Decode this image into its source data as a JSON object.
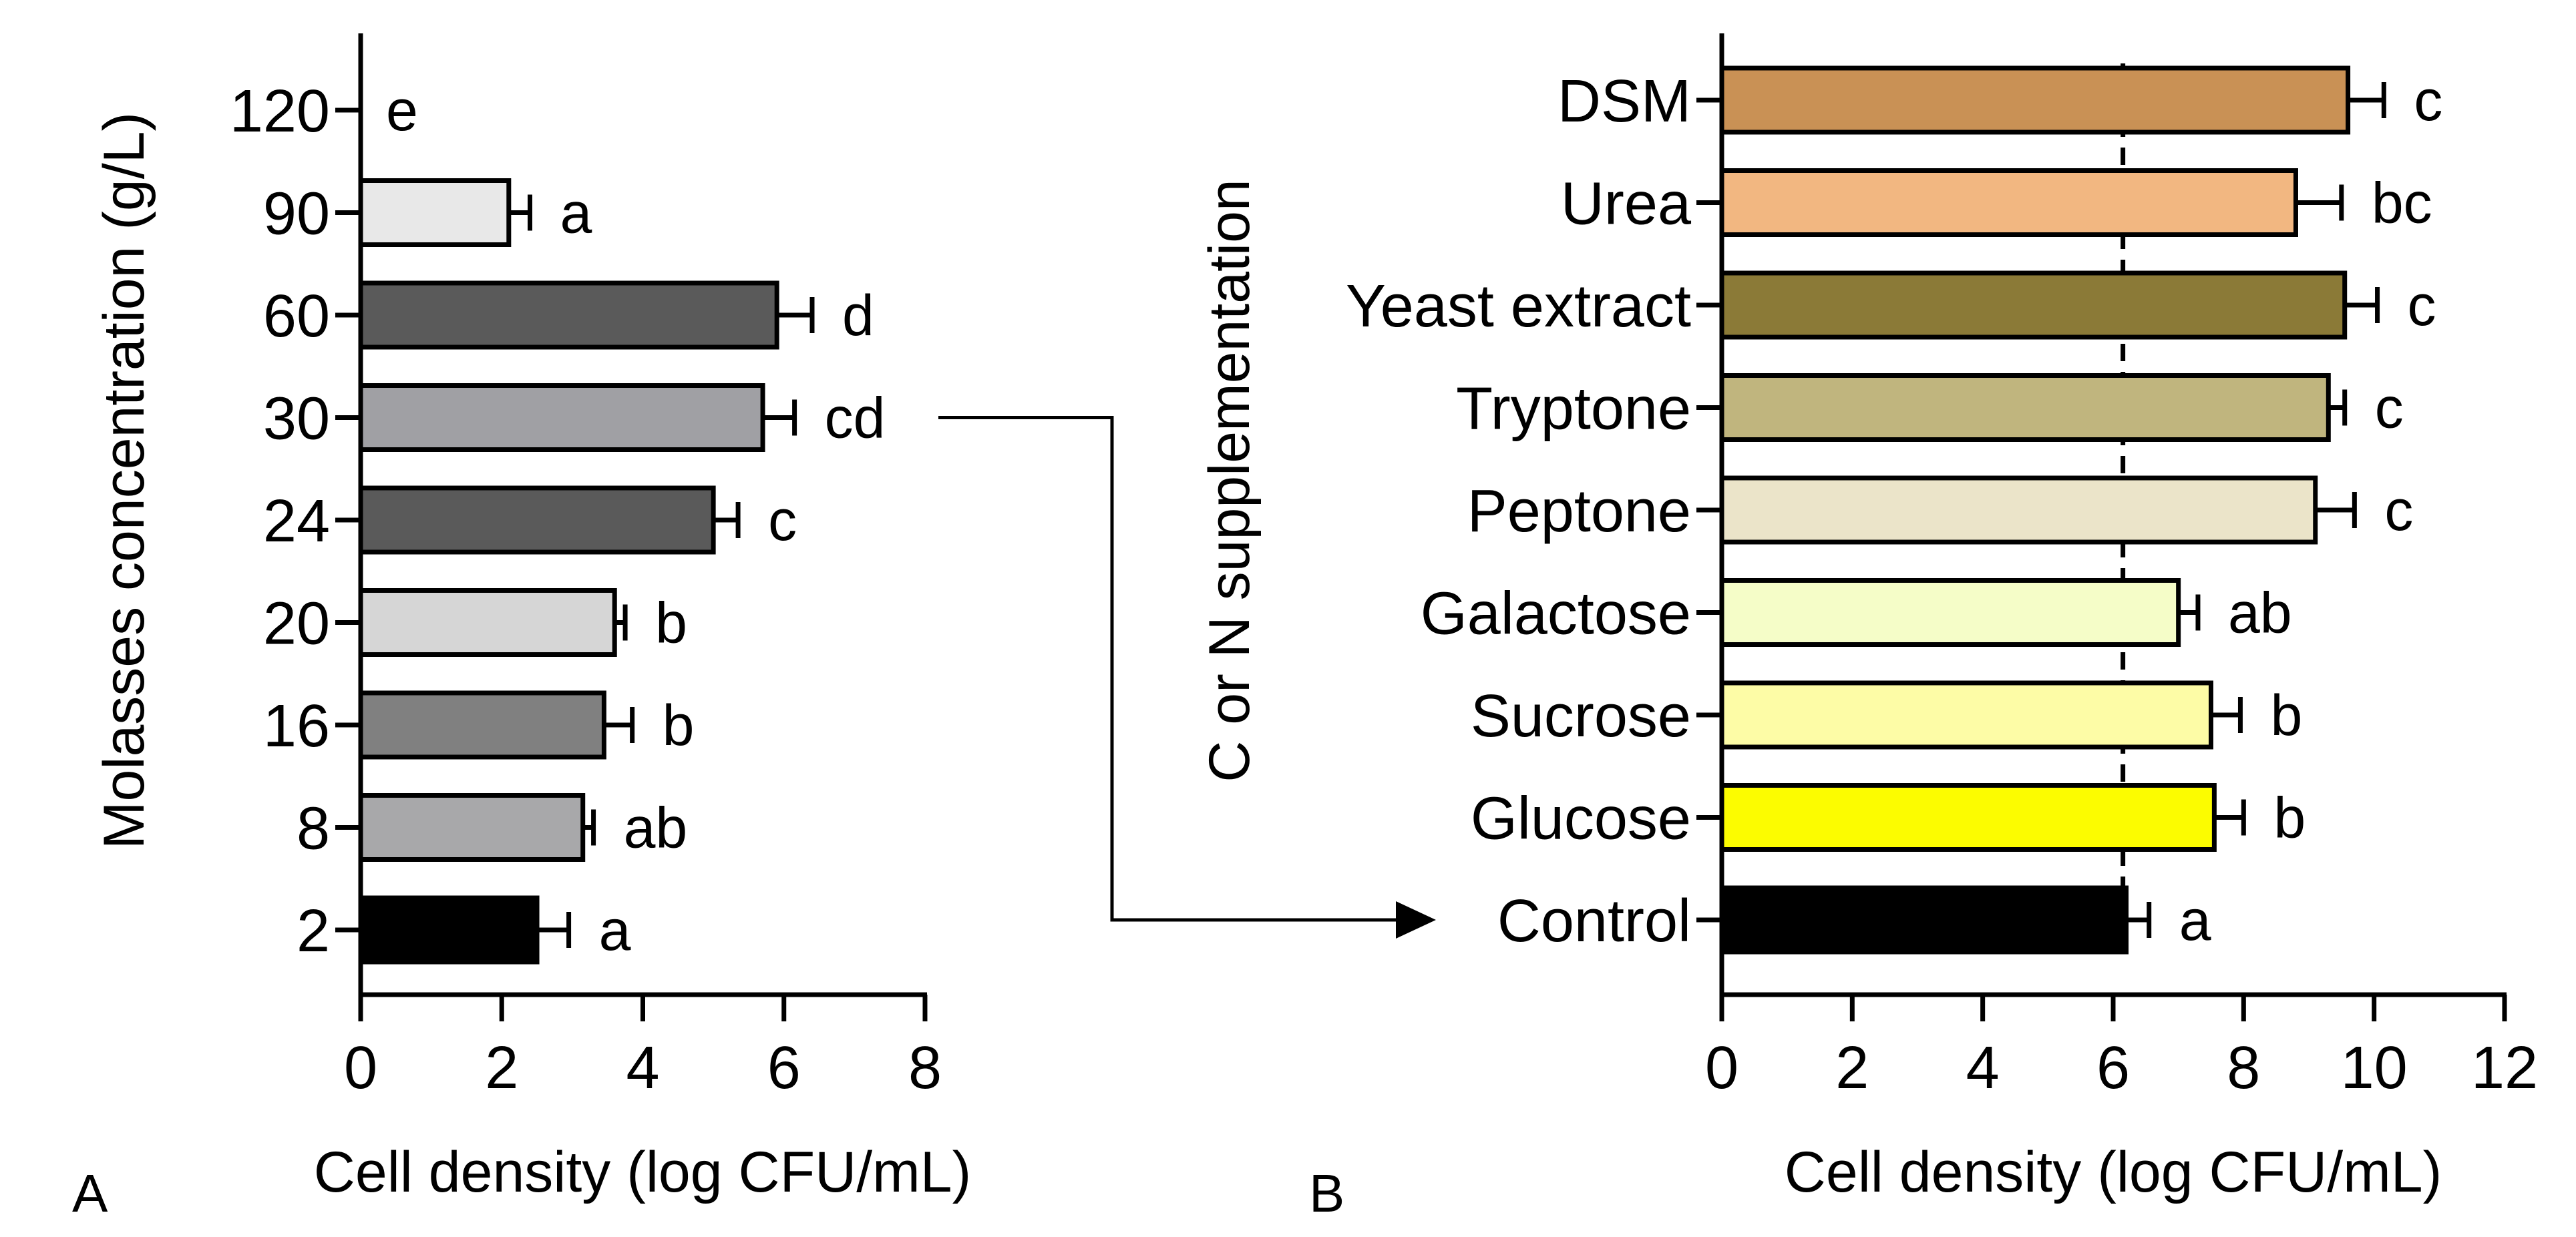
{
  "chart_data": [
    {
      "panel": "A",
      "type": "bar",
      "orientation": "horizontal",
      "ylabel": "Molasses concentration (g/L)",
      "xlabel": "Cell density (log CFU/mL)",
      "xlim": [
        0,
        8
      ],
      "xticks": [
        0,
        2,
        4,
        6,
        8
      ],
      "categories": [
        "120",
        "90",
        "60",
        "30",
        "24",
        "20",
        "16",
        "8",
        "2"
      ],
      "values": [
        0,
        2.1,
        5.9,
        5.7,
        5.0,
        3.6,
        3.45,
        3.15,
        2.5
      ],
      "errors": [
        0,
        0.3,
        0.5,
        0.45,
        0.35,
        0.15,
        0.4,
        0.15,
        0.45
      ],
      "significance": [
        "e",
        "a",
        "d",
        "cd",
        "c",
        "b",
        "b",
        "ab",
        "a"
      ],
      "colors": [
        "#ffffff",
        "#e8e8e8",
        "#5a5a5a",
        "#a0a0a4",
        "#5a5a5a",
        "#d6d6d6",
        "#808080",
        "#a8a8aa",
        "#000000"
      ]
    },
    {
      "panel": "B",
      "type": "bar",
      "orientation": "horizontal",
      "ylabel": "C or N supplementation",
      "xlabel": "Cell density (log CFU/mL)",
      "xlim": [
        0,
        12
      ],
      "xticks": [
        0,
        2,
        4,
        6,
        8,
        10,
        12
      ],
      "reference_line": 6.15,
      "categories": [
        "DSM",
        "Urea",
        "Yeast extract",
        "Tryptone",
        "Peptone",
        "Galactose",
        "Sucrose",
        "Glucose",
        "Control"
      ],
      "values": [
        9.6,
        8.8,
        9.55,
        9.3,
        9.1,
        7.0,
        7.5,
        7.55,
        6.2
      ],
      "errors": [
        0.55,
        0.7,
        0.5,
        0.25,
        0.6,
        0.3,
        0.45,
        0.45,
        0.35
      ],
      "significance": [
        "c",
        "bc",
        "c",
        "c",
        "c",
        "ab",
        "b",
        "b",
        "a"
      ],
      "colors": [
        "#c99155",
        "#f2b781",
        "#8b7a37",
        "#c0b57e",
        "#ebe4c9",
        "#f5fdc8",
        "#fdfca6",
        "#fcfc00",
        "#000000"
      ]
    }
  ],
  "panel_labels": {
    "a": "A",
    "b": "B"
  }
}
